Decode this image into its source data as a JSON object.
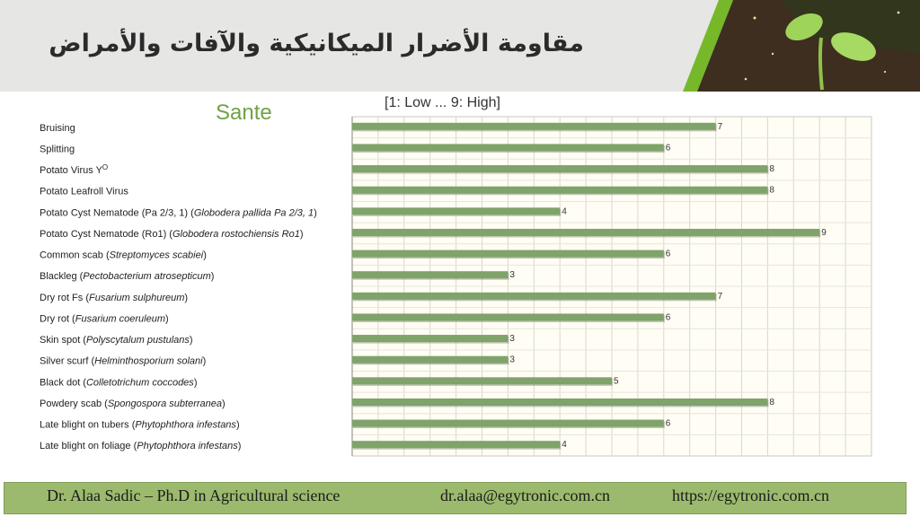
{
  "header": {
    "title": "مقاومة الأضرار الميكانيكية والآفات والأمراض",
    "colors": {
      "band": "#e6e6e4",
      "stripe": "#76b82a",
      "soil": "#3e2e1f"
    }
  },
  "footer": {
    "author": "Dr. Alaa Sadic – Ph.D in Agricultural science",
    "email": "dr.alaa@egytronic.com.cn",
    "website": "https://egytronic.com.cn",
    "color": "#9cba6d"
  },
  "chart_data": {
    "type": "bar",
    "orientation": "horizontal",
    "title": "Sante",
    "scale_note": "[1: Low ... 9: High]",
    "xlim": [
      0,
      10
    ],
    "grid": true,
    "bar_color": "#7fa36a",
    "categories": [
      {
        "text": "Bruising",
        "species": ""
      },
      {
        "text": "Splitting",
        "species": ""
      },
      {
        "text": "Potato Virus Y",
        "species": "",
        "sup": "O"
      },
      {
        "text": "Potato Leafroll Virus",
        "species": ""
      },
      {
        "text": "Potato Cyst Nematode (Pa 2/3, 1) (",
        "species": "Globodera pallida Pa 2/3, 1",
        "close": ")"
      },
      {
        "text": "Potato Cyst Nematode (Ro1) (",
        "species": "Globodera rostochiensis Ro1",
        "close": ")"
      },
      {
        "text": "Common scab (",
        "species": "Streptomyces scabiei",
        "close": ")"
      },
      {
        "text": "Blackleg  (",
        "species": "Pectobacterium atrosepticum",
        "close": ")"
      },
      {
        "text": "Dry rot Fs (",
        "species": "Fusarium sulphureum",
        "close": ")"
      },
      {
        "text": "Dry rot (",
        "species": "Fusarium coeruleum",
        "close": ")"
      },
      {
        "text": "Skin spot (",
        "species": "Polyscytalum pustulans",
        "close": ")"
      },
      {
        "text": "Silver scurf (",
        "species": "Helminthosporium solani",
        "close": ")"
      },
      {
        "text": "Black dot (",
        "species": "Colletotrichum coccodes",
        "close": ")"
      },
      {
        "text": "Powdery scab (",
        "species": "Spongospora subterranea",
        "close": ")"
      },
      {
        "text": "Late blight on tubers (",
        "species": "Phytophthora infestans",
        "close": ")"
      },
      {
        "text": "Late blight on foliage (",
        "species": "Phytophthora infestans",
        "close": ")"
      }
    ],
    "values": [
      7,
      6,
      8,
      8,
      4,
      9,
      6,
      3,
      7,
      6,
      3,
      3,
      5,
      8,
      6,
      4
    ]
  }
}
